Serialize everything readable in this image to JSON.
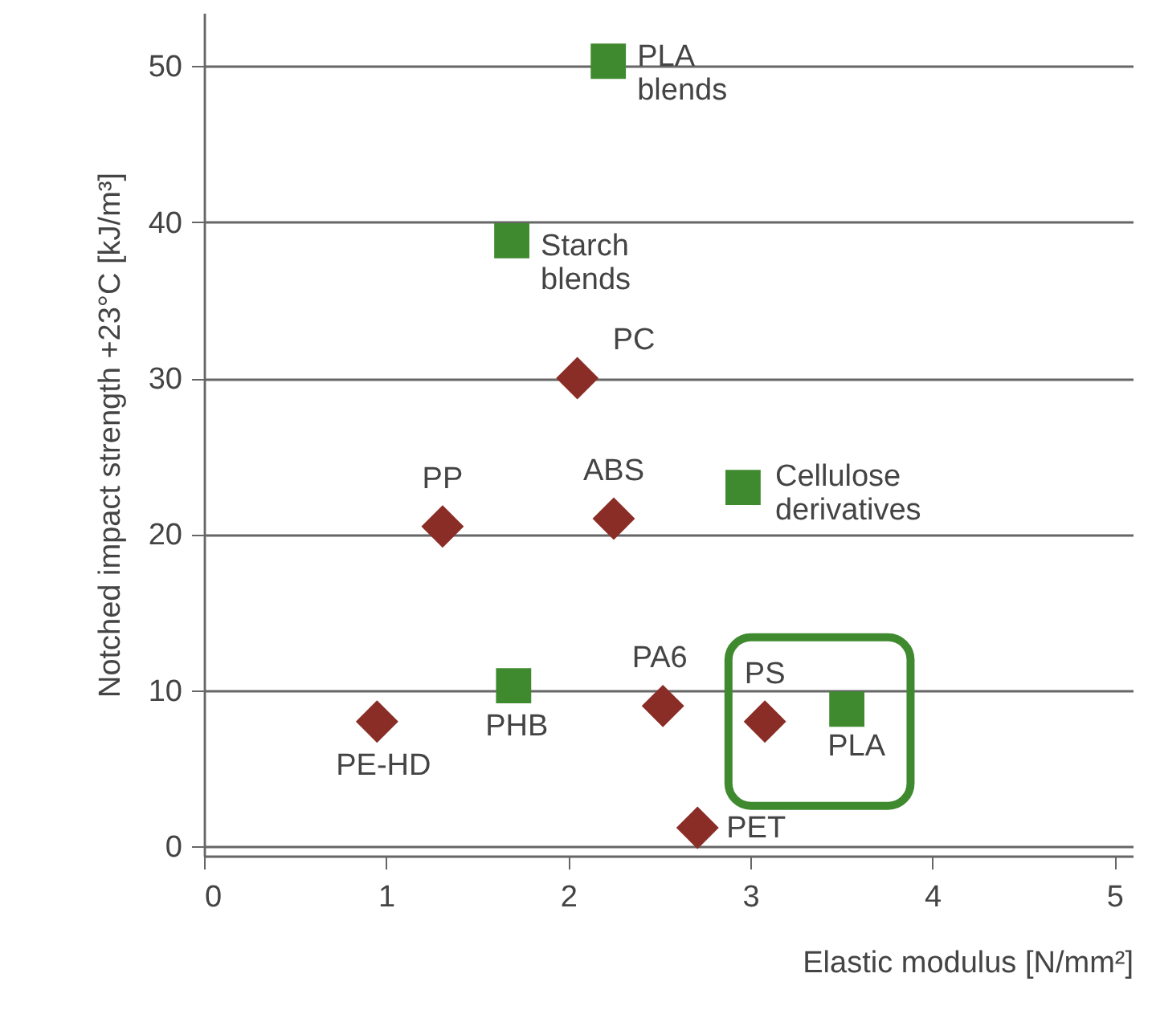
{
  "chart_data": {
    "type": "scatter",
    "xlabel": "Elastic modulus [N/mm²]",
    "ylabel": "Notched impact strength +23°C [kJ/m³]",
    "xlim": [
      0,
      5.1
    ],
    "ylim": [
      -0.6,
      53.4
    ],
    "xticks": [
      0,
      1,
      2,
      3,
      4,
      5
    ],
    "yticks": [
      0,
      10,
      20,
      30,
      40,
      50
    ],
    "grid": "y",
    "series": [
      {
        "color": "#8b2d27",
        "marker": "diamond",
        "x": [
          2.05,
          1.31,
          2.25,
          0.95,
          2.52,
          3.08,
          2.71
        ],
        "values": [
          30,
          20.5,
          21,
          8,
          9,
          8,
          1.2
        ]
      },
      {
        "color": "#3f8a2f",
        "marker": "square",
        "x": [
          2.22,
          1.69,
          2.96,
          1.7,
          3.53
        ],
        "values": [
          50.3,
          38.8,
          23,
          10.3,
          8.8
        ]
      }
    ],
    "annotations": [
      {
        "text": "PLA\nblends",
        "x": 2.22,
        "y": 50.3
      },
      {
        "text": "Starch\nblends",
        "x": 1.69,
        "y": 38.8
      },
      {
        "text": "PC",
        "x": 2.05,
        "y": 30
      },
      {
        "text": "PP",
        "x": 1.31,
        "y": 20.5
      },
      {
        "text": "ABS",
        "x": 2.25,
        "y": 21
      },
      {
        "text": "Cellulose\nderivatives",
        "x": 2.96,
        "y": 23
      },
      {
        "text": "PE-HD",
        "x": 0.95,
        "y": 8
      },
      {
        "text": "PHB",
        "x": 1.7,
        "y": 10.3
      },
      {
        "text": "PA6",
        "x": 2.52,
        "y": 9
      },
      {
        "text": "PS",
        "x": 3.08,
        "y": 8
      },
      {
        "text": "PLA",
        "x": 3.53,
        "y": 8.8
      },
      {
        "text": "PET",
        "x": 2.71,
        "y": 1.2
      }
    ]
  }
}
